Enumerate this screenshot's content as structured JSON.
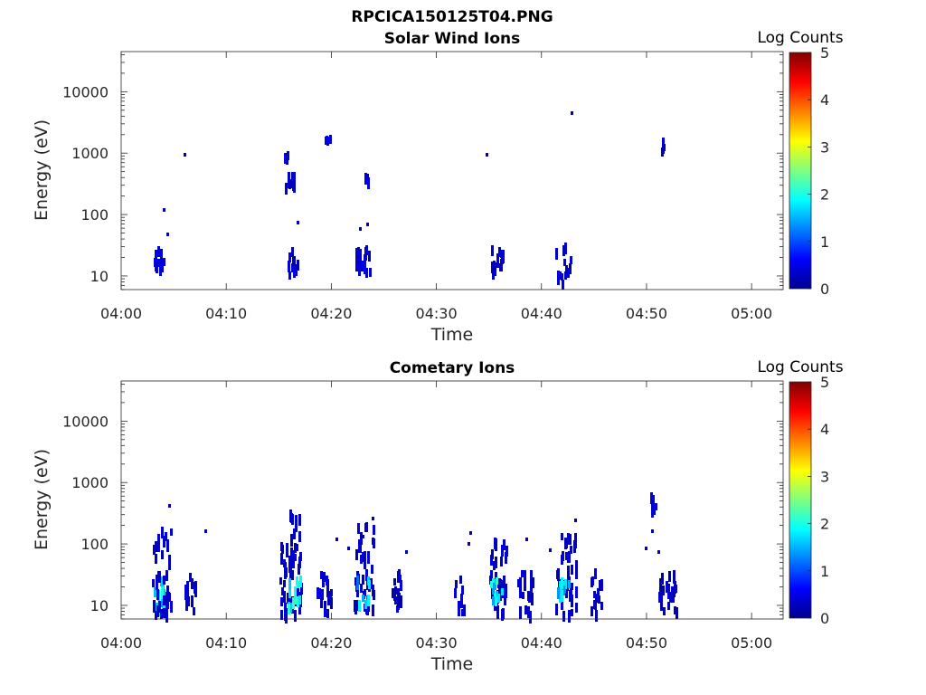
{
  "figure_title": "RPCICA150125T04.PNG",
  "chart_data": [
    {
      "type": "heatmap",
      "title": "Solar Wind Ions",
      "xlabel": "Time",
      "ylabel": "Energy (eV)",
      "yscale": "log",
      "xlim": [
        "04:00",
        "05:03"
      ],
      "ylim": [
        6,
        45000
      ],
      "xticks": [
        "04:00",
        "04:10",
        "04:20",
        "04:30",
        "04:40",
        "04:50",
        "05:00"
      ],
      "yticks": [
        10,
        100,
        1000,
        10000
      ],
      "ytick_labels": [
        "10",
        "100",
        "1000",
        "10000"
      ],
      "colorbar": {
        "label": "Log Counts",
        "range": [
          0,
          5
        ],
        "ticks": [
          "0",
          "1",
          "2",
          "3",
          "4",
          "5"
        ]
      },
      "clusters": [
        {
          "t": [
            3.0,
            4.0
          ],
          "e": [
            13,
            32
          ],
          "v": 0.4,
          "n": 16
        },
        {
          "t": [
            15.6,
            16.8
          ],
          "e": [
            8,
            32
          ],
          "v": 0.4,
          "n": 10
        },
        {
          "t": [
            15.5,
            16.7
          ],
          "e": [
            280,
            550
          ],
          "v": 0.4,
          "n": 10
        },
        {
          "t": [
            15.4,
            16.0
          ],
          "e": [
            900,
            1100
          ],
          "v": 0.4,
          "n": 3
        },
        {
          "t": [
            19.3,
            19.9
          ],
          "e": [
            1850,
            2050
          ],
          "v": 0.4,
          "n": 4
        },
        {
          "t": [
            22.2,
            23.6
          ],
          "e": [
            13,
            32
          ],
          "v": 0.4,
          "n": 18
        },
        {
          "t": [
            23.0,
            23.6
          ],
          "e": [
            380,
            480
          ],
          "v": 0.4,
          "n": 4
        },
        {
          "t": [
            35.1,
            36.3
          ],
          "e": [
            13,
            32
          ],
          "v": 0.4,
          "n": 16
        },
        {
          "t": [
            41.3,
            42.7
          ],
          "e": [
            8,
            36
          ],
          "v": 0.4,
          "n": 14
        },
        {
          "t": [
            51.4,
            51.8
          ],
          "e": [
            1000,
            2300
          ],
          "v": 0.4,
          "n": 4
        }
      ],
      "points": [
        {
          "t": 4.0,
          "e": 120,
          "v": 0.3
        },
        {
          "t": 4.3,
          "e": 48,
          "v": 0.3
        },
        {
          "t": 5.9,
          "e": 950,
          "v": 0.3
        },
        {
          "t": 16.7,
          "e": 73,
          "v": 0.3
        },
        {
          "t": 22.6,
          "e": 58,
          "v": 0.3
        },
        {
          "t": 23.3,
          "e": 68,
          "v": 0.3
        },
        {
          "t": 34.7,
          "e": 950,
          "v": 0.3
        },
        {
          "t": 42.8,
          "e": 4500,
          "v": 0.3
        }
      ]
    },
    {
      "type": "heatmap",
      "title": "Cometary Ions",
      "xlabel": "Time",
      "ylabel": "Energy (eV)",
      "yscale": "log",
      "xlim": [
        "04:00",
        "05:03"
      ],
      "ylim": [
        6,
        45000
      ],
      "xticks": [
        "04:00",
        "04:10",
        "04:20",
        "04:30",
        "04:40",
        "04:50",
        "05:00"
      ],
      "yticks": [
        10,
        100,
        1000,
        10000
      ],
      "ytick_labels": [
        "10",
        "100",
        "1000",
        "10000"
      ],
      "colorbar": {
        "label": "Log Counts",
        "range": [
          0,
          5
        ],
        "ticks": [
          "0",
          "1",
          "2",
          "3",
          "4",
          "5"
        ]
      },
      "clusters": [
        {
          "t": [
            2.9,
            4.0
          ],
          "e": [
            10,
            35
          ],
          "v": 1.7,
          "n": 12
        },
        {
          "t": [
            2.9,
            4.7
          ],
          "e": [
            8,
            200
          ],
          "v": 0.35,
          "n": 40
        },
        {
          "t": [
            5.9,
            7.0
          ],
          "e": [
            8,
            35
          ],
          "v": 0.35,
          "n": 16
        },
        {
          "t": [
            15.1,
            17.1
          ],
          "e": [
            7,
            140
          ],
          "v": 0.35,
          "n": 50
        },
        {
          "t": [
            15.8,
            17.0
          ],
          "e": [
            10,
            32
          ],
          "v": 1.8,
          "n": 14
        },
        {
          "t": [
            16.0,
            16.9
          ],
          "e": [
            140,
            500
          ],
          "v": 0.35,
          "n": 10
        },
        {
          "t": [
            18.6,
            20.0
          ],
          "e": [
            8,
            40
          ],
          "v": 0.35,
          "n": 18
        },
        {
          "t": [
            22.0,
            24.0
          ],
          "e": [
            8,
            250
          ],
          "v": 0.35,
          "n": 45
        },
        {
          "t": [
            22.3,
            23.6
          ],
          "e": [
            12,
            32
          ],
          "v": 1.5,
          "n": 12
        },
        {
          "t": [
            25.6,
            26.5
          ],
          "e": [
            8,
            40
          ],
          "v": 0.35,
          "n": 14
        },
        {
          "t": [
            31.6,
            32.6
          ],
          "e": [
            8,
            32
          ],
          "v": 0.35,
          "n": 12
        },
        {
          "t": [
            34.9,
            36.6
          ],
          "e": [
            8,
            170
          ],
          "v": 0.35,
          "n": 40
        },
        {
          "t": [
            35.1,
            36.3
          ],
          "e": [
            12,
            32
          ],
          "v": 1.7,
          "n": 12
        },
        {
          "t": [
            37.6,
            39.2
          ],
          "e": [
            8,
            40
          ],
          "v": 0.35,
          "n": 20
        },
        {
          "t": [
            41.3,
            43.3
          ],
          "e": [
            8,
            180
          ],
          "v": 0.35,
          "n": 40
        },
        {
          "t": [
            41.5,
            42.6
          ],
          "e": [
            12,
            32
          ],
          "v": 1.5,
          "n": 12
        },
        {
          "t": [
            44.6,
            45.6
          ],
          "e": [
            8,
            40
          ],
          "v": 0.35,
          "n": 14
        },
        {
          "t": [
            51.0,
            52.8
          ],
          "e": [
            8,
            40
          ],
          "v": 0.35,
          "n": 24
        },
        {
          "t": [
            50.3,
            50.9
          ],
          "e": [
            280,
            800
          ],
          "v": 0.35,
          "n": 6
        }
      ],
      "points": [
        {
          "t": 4.5,
          "e": 420,
          "v": 0.3
        },
        {
          "t": 7.9,
          "e": 160,
          "v": 0.3
        },
        {
          "t": 20.4,
          "e": 120,
          "v": 0.3
        },
        {
          "t": 21.5,
          "e": 85,
          "v": 0.3
        },
        {
          "t": 22.9,
          "e": 130,
          "v": 0.3
        },
        {
          "t": 23.8,
          "e": 260,
          "v": 0.3
        },
        {
          "t": 27.0,
          "e": 75,
          "v": 0.3
        },
        {
          "t": 33.1,
          "e": 150,
          "v": 0.3
        },
        {
          "t": 33.0,
          "e": 100,
          "v": 0.3
        },
        {
          "t": 38.5,
          "e": 120,
          "v": 0.3
        },
        {
          "t": 40.7,
          "e": 80,
          "v": 0.3
        },
        {
          "t": 43.1,
          "e": 240,
          "v": 0.3
        },
        {
          "t": 49.8,
          "e": 85,
          "v": 0.3
        },
        {
          "t": 50.4,
          "e": 160,
          "v": 0.3
        },
        {
          "t": 51.0,
          "e": 75,
          "v": 0.3
        }
      ]
    }
  ]
}
